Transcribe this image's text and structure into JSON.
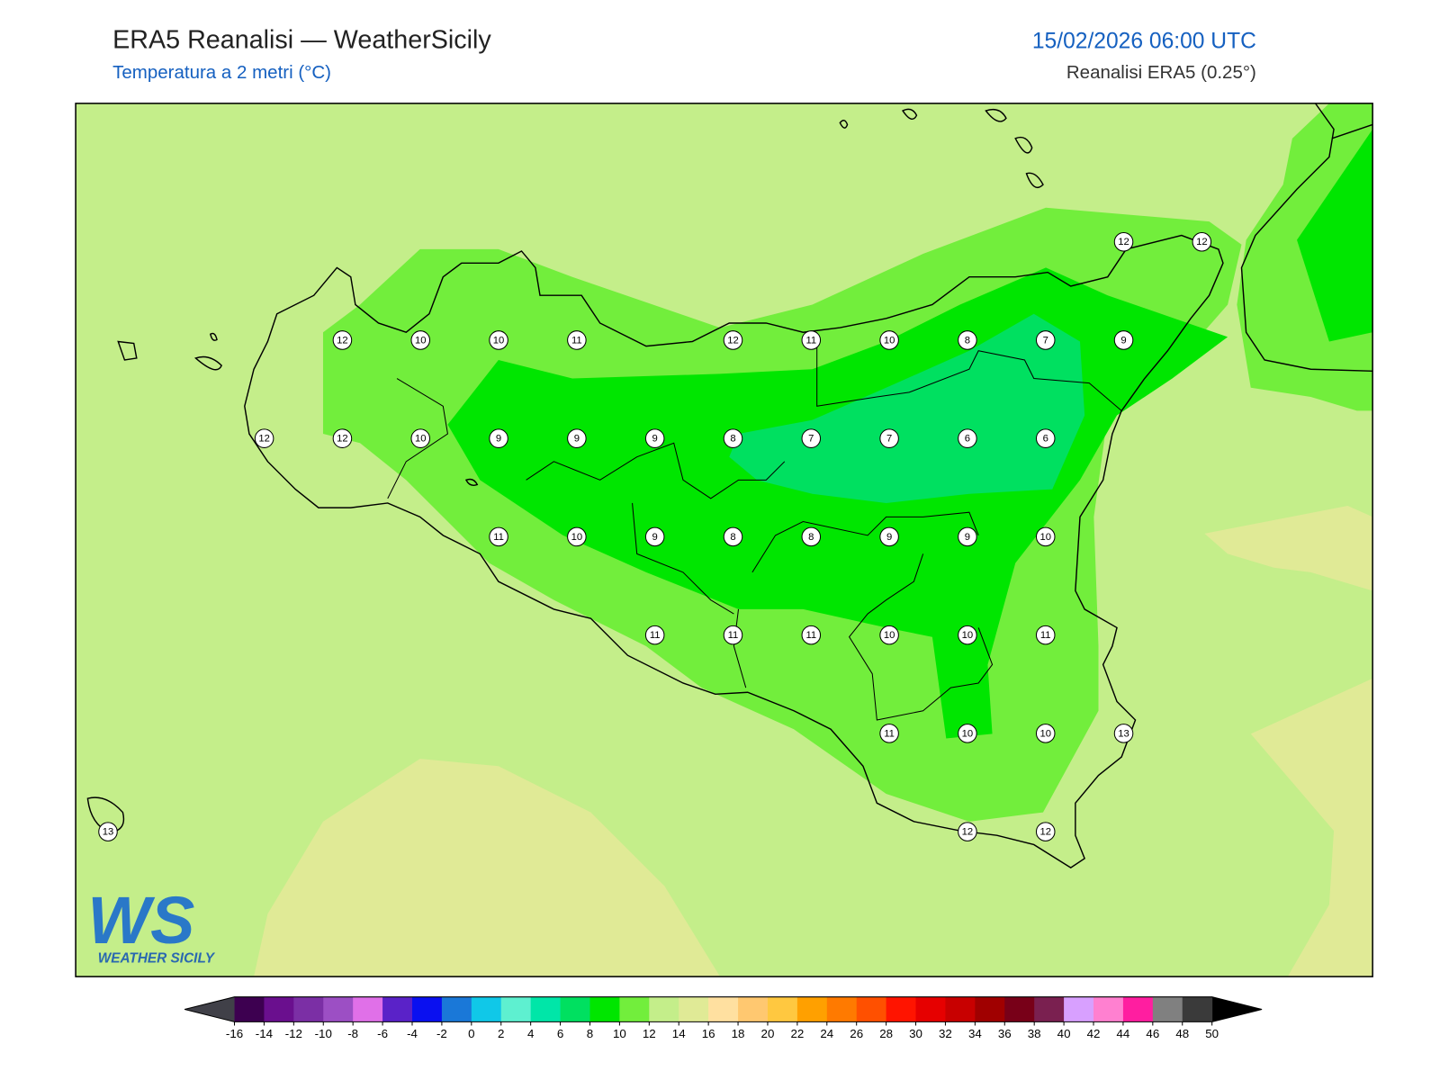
{
  "header": {
    "title": "ERA5 Reanalisi — WeatherSicily",
    "subtitle": "Temperatura a 2 metri (°C)",
    "datetime": "15/02/2026 06:00 UTC",
    "source": "Reanalisi ERA5 (0.25°)"
  },
  "stations": [
    12,
    12,
    12,
    10,
    10,
    11,
    12,
    11,
    10,
    8,
    7,
    9,
    12,
    12,
    10,
    9,
    9,
    9,
    8,
    7,
    7,
    6,
    6,
    11,
    10,
    9,
    8,
    8,
    9,
    9,
    10,
    11,
    11,
    11,
    10,
    10,
    11,
    11,
    10,
    10,
    13,
    13,
    12,
    12
  ],
  "colorbar": {
    "ticks": [
      -16,
      -14,
      -12,
      -10,
      -8,
      -6,
      -4,
      -2,
      0,
      2,
      4,
      6,
      8,
      10,
      12,
      14,
      16,
      18,
      20,
      22,
      24,
      26,
      28,
      30,
      32,
      34,
      36,
      38,
      40,
      42,
      44,
      46,
      48,
      50
    ],
    "colors": [
      "#3d0050",
      "#6a0f8e",
      "#7b2fa5",
      "#9c4fc4",
      "#e070e8",
      "#5a22c8",
      "#0a10f0",
      "#1a78d8",
      "#10c8e8",
      "#5ef0d0",
      "#00e6a8",
      "#00e060",
      "#00e600",
      "#72ee3c",
      "#c4ee8a",
      "#e0ea96",
      "#ffe0a0",
      "#ffc870",
      "#ffc840",
      "#ffa000",
      "#ff7a00",
      "#ff5000",
      "#ff1400",
      "#e60000",
      "#c80000",
      "#a00000",
      "#780018",
      "#7a2050",
      "#d8a0ff",
      "#ff80d0",
      "#ff1ea0",
      "#808080",
      "#3a3a3a"
    ],
    "under_color": "#404048",
    "over_color": "#000000"
  },
  "logo": {
    "mark": "WS",
    "name": "WEATHER SICILY"
  }
}
